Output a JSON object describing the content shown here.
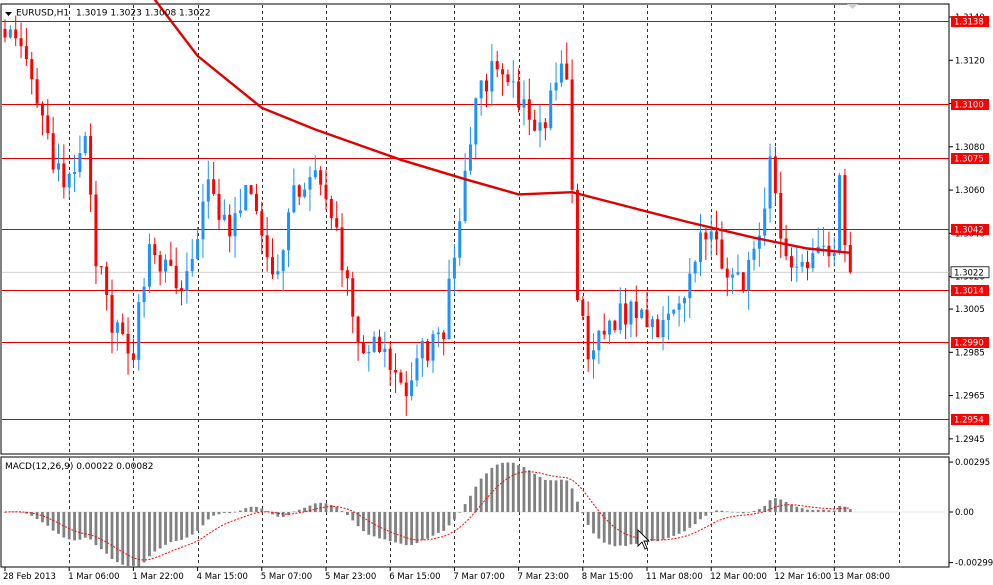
{
  "header": {
    "symbol_label": "EURUSD,H1",
    "ohlc_label": "1.3019 1.3023 1.3008 1.3022"
  },
  "indicator": {
    "label": "MACD(12,26,9) 0.00022 0.00082"
  },
  "colors": {
    "bull": "#1e90ff",
    "bear": "#ff0000",
    "ma": "#e00000",
    "level": "#e00000",
    "level_box": "#ff0000",
    "price_box": "#ffffff",
    "hist": "#808080",
    "signal": "#ff0000",
    "grid": "#000000"
  },
  "icons": {
    "menu": "triangle-down-icon",
    "cursor": "mouse-pointer-icon",
    "scroll": "shift-triangle-icon"
  },
  "chart_data": {
    "type": "candlestick",
    "symbol": "EURUSD",
    "timeframe": "H1",
    "ylim": [
      1.2938,
      1.3146
    ],
    "y_ticks": [
      "1.3140",
      "1.3120",
      "1.3100",
      "1.3080",
      "1.3060",
      "1.3040",
      "1.3020",
      "1.3005",
      "1.2985",
      "1.2965",
      "1.2945"
    ],
    "y_tick_values": [
      1.314,
      1.312,
      1.31,
      1.308,
      1.306,
      1.304,
      1.302,
      1.3005,
      1.2985,
      1.2965,
      1.2945
    ],
    "x_labels": [
      "28 Feb 2013",
      "1 Mar 06:00",
      "1 Mar 22:00",
      "4 Mar 15:00",
      "5 Mar 07:00",
      "5 Mar 23:00",
      "6 Mar 15:00",
      "7 Mar 07:00",
      "7 Mar 23:00",
      "8 Mar 15:00",
      "11 Mar 08:00",
      "12 Mar 00:00",
      "12 Mar 16:00",
      "13 Mar 08:00"
    ],
    "levels": [
      {
        "value": 1.3138,
        "label": "1.3138"
      },
      {
        "value": 1.31,
        "label": "1.3100"
      },
      {
        "value": 1.3075,
        "label": "1.3075"
      },
      {
        "value": 1.3042,
        "label": "1.3042"
      },
      {
        "value": 1.3014,
        "label": "1.3014"
      },
      {
        "value": 1.299,
        "label": "1.2990"
      },
      {
        "value": 1.2954,
        "label": "1.2954"
      }
    ],
    "current_price": {
      "value": 1.3022,
      "label": "1.3022"
    },
    "trend_anchors": [
      [
        0,
        1.3137
      ],
      [
        4,
        1.3115
      ],
      [
        8,
        1.3082
      ],
      [
        11,
        1.3058
      ],
      [
        15,
        1.308
      ],
      [
        17,
        1.303
      ],
      [
        20,
        1.2995
      ],
      [
        24,
        1.2988
      ],
      [
        27,
        1.3035
      ],
      [
        33,
        1.3012
      ],
      [
        38,
        1.306
      ],
      [
        42,
        1.304
      ],
      [
        46,
        1.3062
      ],
      [
        50,
        1.3015
      ],
      [
        54,
        1.306
      ],
      [
        58,
        1.3065
      ],
      [
        62,
        1.304
      ],
      [
        66,
        1.299
      ],
      [
        70,
        1.2985
      ],
      [
        74,
        1.2966
      ],
      [
        78,
        1.2985
      ],
      [
        82,
        1.2995
      ],
      [
        86,
        1.3068
      ],
      [
        89,
        1.311
      ],
      [
        92,
        1.3115
      ],
      [
        96,
        1.31
      ],
      [
        100,
        1.3085
      ],
      [
        103,
        1.3112
      ],
      [
        105,
        1.3112
      ],
      [
        107,
        1.301
      ],
      [
        109,
        1.2982
      ],
      [
        112,
        1.2997
      ],
      [
        117,
        1.3005
      ],
      [
        122,
        1.2998
      ],
      [
        127,
        1.3015
      ],
      [
        130,
        1.304
      ],
      [
        134,
        1.303
      ],
      [
        138,
        1.3012
      ],
      [
        141,
        1.304
      ],
      [
        143,
        1.307
      ],
      [
        146,
        1.3025
      ],
      [
        150,
        1.303
      ],
      [
        155,
        1.3035
      ],
      [
        156,
        1.3065
      ],
      [
        157,
        1.3035
      ],
      [
        158,
        1.302
      ]
    ],
    "ma_points": [
      [
        28,
        1.3148
      ],
      [
        36,
        1.3122
      ],
      [
        48,
        1.3098
      ],
      [
        58,
        1.3088
      ],
      [
        74,
        1.3074
      ],
      [
        86,
        1.3065
      ],
      [
        96,
        1.3058
      ],
      [
        106,
        1.3059
      ],
      [
        117,
        1.3052
      ],
      [
        128,
        1.3045
      ],
      [
        140,
        1.3038
      ],
      [
        150,
        1.3033
      ],
      [
        158,
        1.3031
      ]
    ],
    "macd_ylim": [
      -0.00325,
      0.00325
    ],
    "macd_ticks": [
      {
        "value": 0.00295,
        "label": "0.00295"
      },
      {
        "value": 0.0,
        "label": "0.00"
      },
      {
        "value": -0.00299,
        "label": "-0.00299"
      }
    ],
    "bar_count": 159
  }
}
